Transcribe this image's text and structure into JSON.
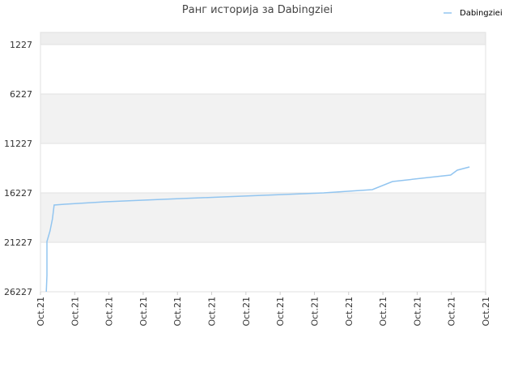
{
  "chart_data": {
    "type": "line",
    "title": "Ранг историја за Dabingziei",
    "series": [
      {
        "name": "Dabingziei",
        "color": "#92c5f0",
        "x": [
          0.17,
          0.19,
          0.19,
          0.28,
          0.35,
          0.4,
          0.71,
          1.89,
          3.55,
          5.91,
          8.27,
          9.69,
          10.28,
          11.98,
          12.17,
          12.53
        ],
        "values": [
          26227,
          24588,
          21145,
          20080,
          18850,
          17457,
          17375,
          17129,
          16883,
          16555,
          16227,
          15899,
          15080,
          14424,
          13932,
          13604
        ]
      }
    ],
    "xlim": [
      0,
      13
    ],
    "xticks": [
      {
        "value": 0,
        "label": "Oct.21"
      },
      {
        "value": 1,
        "label": "Oct.21"
      },
      {
        "value": 2,
        "label": "Oct.21"
      },
      {
        "value": 3,
        "label": "Oct.21"
      },
      {
        "value": 4,
        "label": "Oct.21"
      },
      {
        "value": 5,
        "label": "Oct.21"
      },
      {
        "value": 6,
        "label": "Oct.21"
      },
      {
        "value": 7,
        "label": "Oct.21"
      },
      {
        "value": 8,
        "label": "Oct.21"
      },
      {
        "value": 9,
        "label": "Oct.21"
      },
      {
        "value": 10,
        "label": "Oct.21"
      },
      {
        "value": 11,
        "label": "Oct.21"
      },
      {
        "value": 12,
        "label": "Oct.21"
      },
      {
        "value": 13,
        "label": "Oct.21"
      }
    ],
    "ylim": [
      26227,
      0
    ],
    "yticks": [
      1227,
      6227,
      11227,
      16227,
      21227,
      26227
    ],
    "legend": "top-right",
    "grid": true
  }
}
